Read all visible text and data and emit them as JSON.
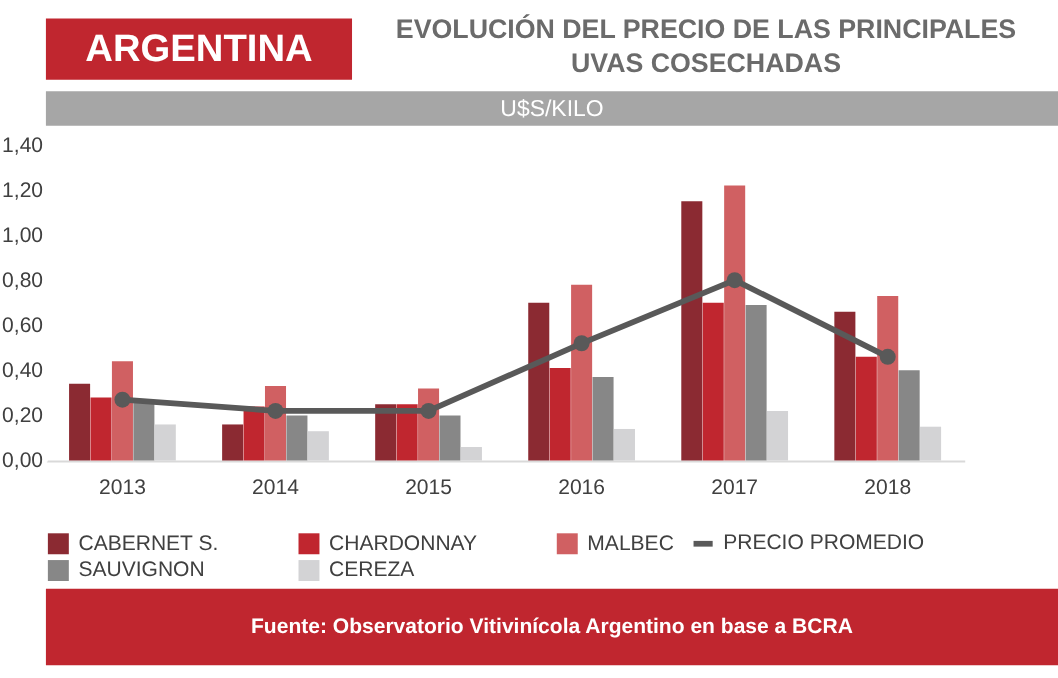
{
  "chart_data": {
    "type": "bar",
    "title": "EVOLUCIÓN DEL PRECIO DE LAS PRINCIPALES UVAS COSECHADAS",
    "subtitle": "U$S/KILO",
    "annotations": [
      "ARGENTINA",
      "Fuente: Observatorio Vitivinícola Argentino en base a BCRA"
    ],
    "categories": [
      "2013",
      "2014",
      "2015",
      "2016",
      "2017",
      "2018"
    ],
    "series": [
      {
        "name": "CABERNET S.",
        "color": "#8b2a32",
        "values": [
          0.34,
          0.16,
          0.25,
          0.7,
          1.15,
          0.66
        ]
      },
      {
        "name": "CHARDONNAY",
        "color": "#c0262f",
        "values": [
          0.28,
          0.24,
          0.25,
          0.41,
          0.7,
          0.46
        ]
      },
      {
        "name": "MALBEC",
        "color": "#d06062",
        "values": [
          0.44,
          0.33,
          0.32,
          0.78,
          1.22,
          0.73
        ]
      },
      {
        "name": "SAUVIGNON",
        "color": "#878787",
        "values": [
          0.27,
          0.2,
          0.2,
          0.37,
          0.69,
          0.4
        ]
      },
      {
        "name": "CEREZA",
        "color": "#d3d3d5",
        "values": [
          0.16,
          0.13,
          0.06,
          0.14,
          0.22,
          0.15
        ]
      },
      {
        "name": "PRECIO PROMEDIO",
        "type": "line",
        "color": "#595959",
        "marker": "circle",
        "line_style": "solid",
        "values": [
          0.27,
          0.22,
          0.22,
          0.52,
          0.8,
          0.46
        ]
      }
    ],
    "ylim": [
      0,
      1.4
    ],
    "yticks": [
      {
        "value": 0,
        "label": "0,00"
      },
      {
        "value": 0.2,
        "label": "0,20"
      },
      {
        "value": 0.4,
        "label": "0,40"
      },
      {
        "value": 0.6,
        "label": "0,60"
      },
      {
        "value": 0.8,
        "label": "0,80"
      },
      {
        "value": 1.0,
        "label": "1,00"
      },
      {
        "value": 1.2,
        "label": "1,20"
      },
      {
        "value": 1.4,
        "label": "1,40"
      }
    ],
    "grid": false,
    "legend": "bottom"
  }
}
